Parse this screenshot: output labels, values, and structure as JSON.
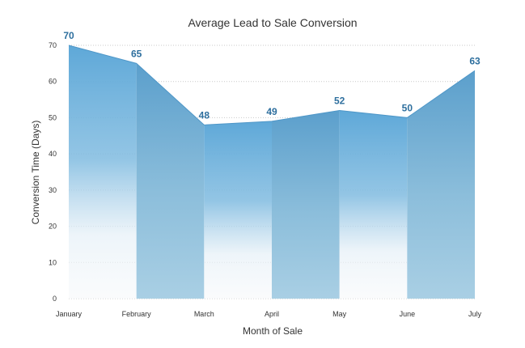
{
  "chart_data": {
    "type": "area",
    "title": "Average Lead to Sale Conversion",
    "xlabel": "Month of Sale",
    "ylabel": "Conversion Time (Days)",
    "categories": [
      "January",
      "February",
      "March",
      "April",
      "May",
      "June",
      "July"
    ],
    "values": [
      70,
      65,
      48,
      49,
      52,
      50,
      63
    ],
    "data_labels": [
      "70",
      "65",
      "48",
      "49",
      "52",
      "50",
      "63"
    ],
    "ylim": [
      0,
      70
    ],
    "yticks": [
      "0",
      "10",
      "20",
      "30",
      "40",
      "50",
      "60",
      "70"
    ],
    "grid": true,
    "colors": {
      "fill_top": "#5ea8d8",
      "fill_bottom": "#ffffff",
      "band": "#a4cbe2",
      "band_top": "#5b9fcc",
      "label": "#2e6f9e"
    }
  }
}
